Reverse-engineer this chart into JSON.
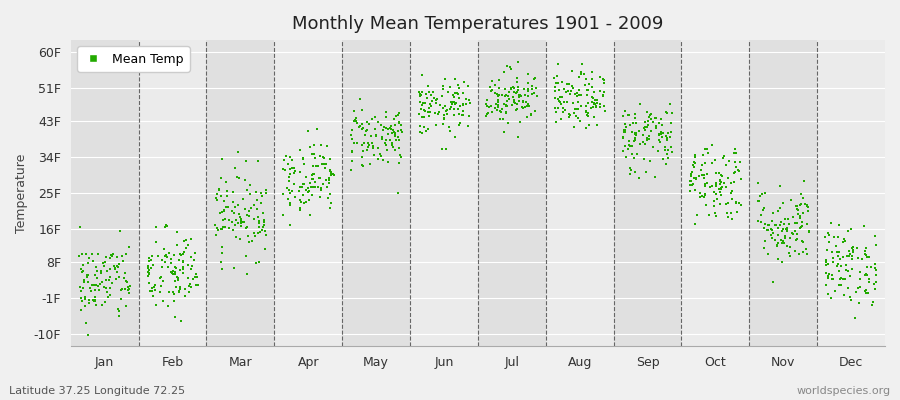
{
  "title": "Monthly Mean Temperatures 1901 - 2009",
  "ylabel": "Temperature",
  "xlabel_months": [
    "Jan",
    "Feb",
    "Mar",
    "Apr",
    "May",
    "Jun",
    "Jul",
    "Aug",
    "Sep",
    "Oct",
    "Nov",
    "Dec"
  ],
  "ytick_labels": [
    "-10F",
    "-1F",
    "8F",
    "16F",
    "25F",
    "34F",
    "43F",
    "51F",
    "60F"
  ],
  "ytick_values": [
    -10,
    -1,
    8,
    16,
    25,
    34,
    43,
    51,
    60
  ],
  "ylim": [
    -13,
    63
  ],
  "dot_color": "#22aa00",
  "dot_size": 3,
  "bg_color": "#f0f0f0",
  "plot_bg_light": "#ebebeb",
  "plot_bg_dark": "#e0e0e0",
  "subtitle": "Latitude 37.25 Longitude 72.25",
  "watermark": "worldspecies.org",
  "legend_label": "Mean Temp",
  "monthly_means_f": [
    3.0,
    5.0,
    20.0,
    29.0,
    39.0,
    46.0,
    49.0,
    48.0,
    39.0,
    28.0,
    17.0,
    7.0
  ],
  "monthly_stds_f": [
    5.0,
    5.5,
    5.5,
    4.5,
    4.0,
    3.5,
    3.5,
    3.5,
    4.5,
    5.0,
    5.0,
    5.0
  ],
  "n_years": 109
}
